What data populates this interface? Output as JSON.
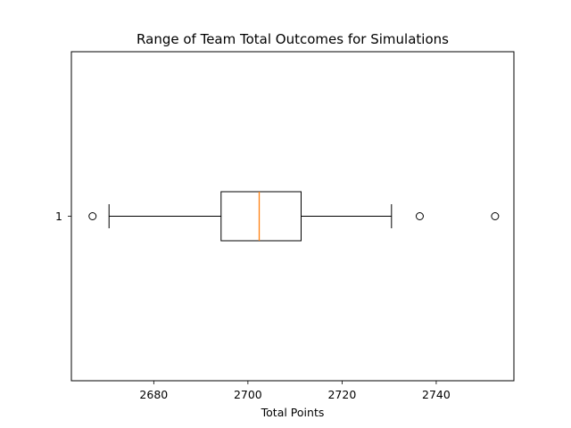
{
  "chart_data": {
    "type": "boxplot",
    "orientation": "horizontal",
    "title": "Range of Team Total Outcomes for Simulations",
    "xlabel": "Total Points",
    "ylabel": "",
    "xlim": [
      2662.5,
      2756.5
    ],
    "x_ticks": [
      2680,
      2700,
      2720,
      2740
    ],
    "x_tick_labels": [
      "2680",
      "2700",
      "2720",
      "2740"
    ],
    "y_tick_labels": [
      "1"
    ],
    "grid": false,
    "colors": {
      "box": "#000000",
      "median": "#ff7f0e",
      "whisker": "#000000",
      "flier": "#000000"
    },
    "boxes": [
      {
        "label": "1",
        "whisker_low": 2670.5,
        "q1": 2694.3,
        "median": 2702.4,
        "q3": 2711.3,
        "whisker_high": 2730.5,
        "fliers": [
          2667.0,
          2736.5,
          2752.5
        ]
      }
    ]
  }
}
